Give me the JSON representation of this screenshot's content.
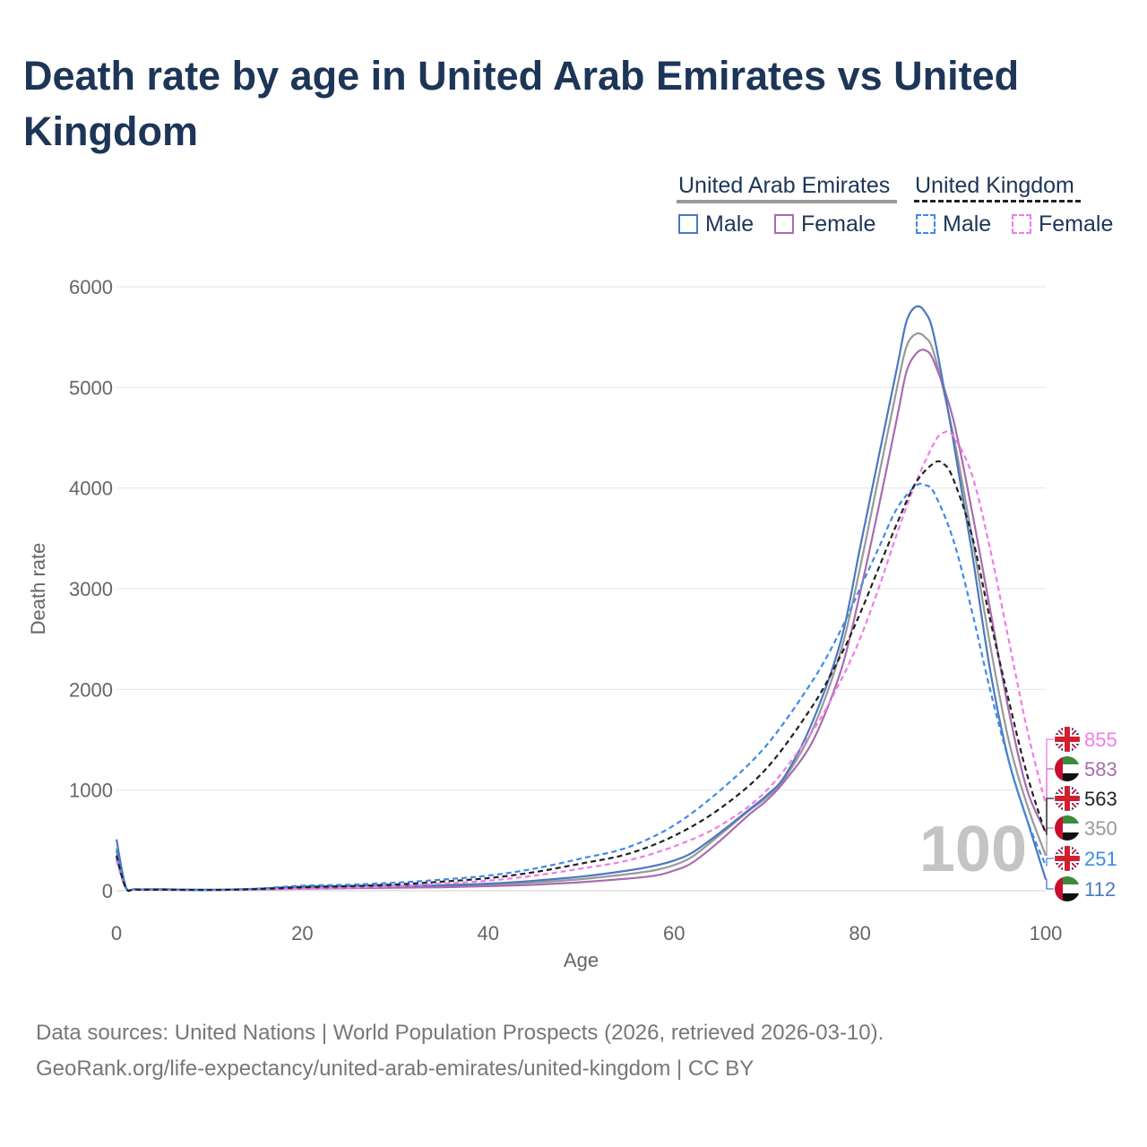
{
  "title": "Death rate by age in United Arab Emirates vs United Kingdom",
  "legend": {
    "groups": [
      {
        "label": "United Arab Emirates",
        "line_color": "#999999",
        "line_style": "solid"
      },
      {
        "label": "United Kingdom",
        "line_color": "#222222",
        "line_style": "dashed"
      }
    ],
    "items": [
      {
        "label": "Male",
        "color": "#4a78c0",
        "style": "solid"
      },
      {
        "label": "Female",
        "color": "#a86cae",
        "style": "solid"
      },
      {
        "label": "Male",
        "color": "#3d8be8",
        "style": "dashed"
      },
      {
        "label": "Female",
        "color": "#f07ce8",
        "style": "dashed"
      }
    ]
  },
  "chart_data": {
    "type": "line",
    "title": "Death rate by age in United Arab Emirates vs United Kingdom",
    "xlabel": "Age",
    "ylabel": "Death rate",
    "xlim": [
      0,
      100
    ],
    "ylim": [
      0,
      6000
    ],
    "xticks": [
      0,
      20,
      40,
      60,
      80,
      100
    ],
    "yticks": [
      0,
      1000,
      2000,
      3000,
      4000,
      5000,
      6000
    ],
    "grid": true,
    "current_age_label": "100",
    "series": [
      {
        "name": "United Arab Emirates Male",
        "color": "#4a78c0",
        "dash": false,
        "x": [
          0,
          1,
          2,
          5,
          10,
          15,
          20,
          25,
          30,
          35,
          40,
          45,
          50,
          55,
          58,
          60,
          62,
          65,
          68,
          70,
          72,
          75,
          78,
          80,
          82,
          84,
          85,
          86,
          87,
          88,
          90,
          92,
          94,
          96,
          98,
          100
        ],
        "y": [
          510,
          40,
          15,
          15,
          10,
          20,
          40,
          45,
          50,
          55,
          70,
          100,
          140,
          200,
          250,
          300,
          380,
          580,
          800,
          950,
          1150,
          1700,
          2500,
          3400,
          4300,
          5200,
          5650,
          5800,
          5750,
          5500,
          4500,
          3400,
          2200,
          1300,
          700,
          112
        ],
        "end_label": "112"
      },
      {
        "name": "United Arab Emirates Female",
        "color": "#a86cae",
        "dash": false,
        "x": [
          0,
          1,
          2,
          5,
          10,
          15,
          20,
          25,
          30,
          35,
          40,
          45,
          50,
          55,
          58,
          60,
          62,
          65,
          68,
          70,
          72,
          75,
          78,
          80,
          82,
          84,
          85,
          86,
          87,
          88,
          90,
          92,
          94,
          96,
          98,
          100
        ],
        "y": [
          330,
          35,
          12,
          12,
          8,
          12,
          20,
          25,
          30,
          35,
          45,
          60,
          85,
          120,
          150,
          200,
          280,
          500,
          750,
          900,
          1100,
          1500,
          2200,
          2950,
          3800,
          4700,
          5150,
          5330,
          5370,
          5250,
          4700,
          3800,
          2800,
          1800,
          1000,
          583
        ],
        "end_label": "583"
      },
      {
        "name": "United Arab Emirates Total",
        "color": "#999999",
        "dash": false,
        "x": [
          0,
          1,
          2,
          5,
          10,
          15,
          20,
          25,
          30,
          35,
          40,
          45,
          50,
          55,
          58,
          60,
          62,
          65,
          68,
          70,
          72,
          75,
          78,
          80,
          82,
          84,
          85,
          86,
          87,
          88,
          90,
          92,
          94,
          96,
          98,
          100
        ],
        "y": [
          420,
          38,
          14,
          14,
          9,
          16,
          32,
          38,
          42,
          46,
          58,
          82,
          115,
          165,
          205,
          255,
          340,
          560,
          790,
          930,
          1130,
          1620,
          2400,
          3200,
          4100,
          5000,
          5400,
          5530,
          5500,
          5330,
          4550,
          3550,
          2450,
          1500,
          850,
          350
        ],
        "end_label": "350"
      },
      {
        "name": "United Kingdom Male",
        "color": "#3d8be8",
        "dash": true,
        "x": [
          0,
          1,
          2,
          5,
          10,
          15,
          20,
          25,
          30,
          35,
          40,
          45,
          50,
          55,
          60,
          65,
          70,
          75,
          78,
          80,
          82,
          84,
          86,
          87,
          88,
          90,
          92,
          94,
          96,
          98,
          100
        ],
        "y": [
          400,
          30,
          15,
          12,
          8,
          20,
          50,
          60,
          80,
          110,
          150,
          220,
          320,
          430,
          650,
          1000,
          1450,
          2100,
          2600,
          3000,
          3400,
          3800,
          4020,
          4030,
          3950,
          3500,
          2800,
          2000,
          1300,
          700,
          251
        ],
        "end_label": "251"
      },
      {
        "name": "United Kingdom Female",
        "color": "#f07ce8",
        "dash": true,
        "x": [
          0,
          1,
          2,
          5,
          10,
          15,
          20,
          25,
          30,
          35,
          40,
          45,
          50,
          55,
          60,
          65,
          70,
          75,
          78,
          80,
          82,
          84,
          86,
          88,
          89,
          90,
          92,
          94,
          96,
          98,
          100
        ],
        "y": [
          300,
          25,
          10,
          8,
          6,
          12,
          20,
          30,
          45,
          70,
          100,
          150,
          220,
          300,
          440,
          650,
          1000,
          1600,
          2100,
          2500,
          3000,
          3550,
          4050,
          4450,
          4550,
          4520,
          4150,
          3400,
          2500,
          1600,
          855
        ],
        "end_label": "855"
      },
      {
        "name": "United Kingdom Total",
        "color": "#222222",
        "dash": true,
        "x": [
          0,
          1,
          2,
          5,
          10,
          15,
          20,
          25,
          30,
          35,
          40,
          45,
          50,
          55,
          60,
          65,
          70,
          75,
          78,
          80,
          82,
          84,
          86,
          88,
          89,
          90,
          92,
          94,
          96,
          98,
          100
        ],
        "y": [
          350,
          28,
          12,
          10,
          7,
          16,
          35,
          45,
          62,
          90,
          125,
          185,
          270,
          365,
          545,
          820,
          1220,
          1850,
          2350,
          2750,
          3200,
          3650,
          4050,
          4250,
          4240,
          4100,
          3550,
          2700,
          1900,
          1150,
          563
        ],
        "end_label": "563"
      }
    ],
    "end_labels": [
      {
        "value": "855",
        "flag": "united-kingdom-flag",
        "color": "#f07ce8"
      },
      {
        "value": "583",
        "flag": "uae-flag",
        "color": "#a86cae"
      },
      {
        "value": "563",
        "flag": "united-kingdom-flag",
        "color": "#222222"
      },
      {
        "value": "350",
        "flag": "uae-flag",
        "color": "#999999"
      },
      {
        "value": "251",
        "flag": "united-kingdom-flag",
        "color": "#3d8be8"
      },
      {
        "value": "112",
        "flag": "uae-flag",
        "color": "#4a78c0"
      }
    ]
  },
  "footer": {
    "line1": "Data sources: United Nations | World Population Prospects (2026, retrieved 2026-03-10).",
    "line2": "GeoRank.org/life-expectancy/united-arab-emirates/united-kingdom | CC BY"
  }
}
